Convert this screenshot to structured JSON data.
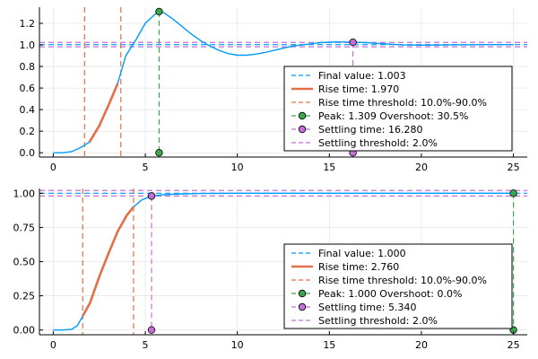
{
  "colors": {
    "response": "#009AFA",
    "rise": "#E26F46",
    "peak": "#3EA44E",
    "settling": "#C271D2",
    "axis": "#000000",
    "grid": "#E6E6E6"
  },
  "chart_data": [
    {
      "type": "line",
      "title": "",
      "xlabel": "",
      "ylabel": "",
      "xlim": [
        -0.75,
        25.75
      ],
      "ylim": [
        -0.04,
        1.35
      ],
      "xticks": [
        0,
        5,
        10,
        15,
        20,
        25
      ],
      "xtick_labels": [
        "0",
        "5",
        "10",
        "15",
        "20",
        "25"
      ],
      "yticks": [
        0.0,
        0.2,
        0.4,
        0.6,
        0.8,
        1.0,
        1.2
      ],
      "ytick_labels": [
        "0.0",
        "0.2",
        "0.4",
        "0.6",
        "0.8",
        "1.0",
        "1.2"
      ],
      "grid": true,
      "legend_position": "bottom-right",
      "response": {
        "x": [
          0,
          0.5,
          1.0,
          1.5,
          1.97,
          2.5,
          3.0,
          3.5,
          3.94,
          4.5,
          5.0,
          5.5,
          5.75,
          6.0,
          6.5,
          7.0,
          7.5,
          8.0,
          8.5,
          9.0,
          9.5,
          10.0,
          10.5,
          11.0,
          11.5,
          12.0,
          12.5,
          13.0,
          13.5,
          14.0,
          14.5,
          15.0,
          15.5,
          16.28,
          17.0,
          17.5,
          18.0,
          18.5,
          19.0,
          20.0,
          21.0,
          22.0,
          23.0,
          24.0,
          25.0
        ],
        "y": [
          0.0,
          0.0,
          0.01,
          0.05,
          0.1,
          0.25,
          0.44,
          0.64,
          0.9,
          1.05,
          1.2,
          1.28,
          1.309,
          1.3,
          1.24,
          1.17,
          1.1,
          1.04,
          0.99,
          0.95,
          0.92,
          0.905,
          0.905,
          0.915,
          0.93,
          0.95,
          0.97,
          0.99,
          1.0,
          1.01,
          1.02,
          1.025,
          1.028,
          1.025,
          1.02,
          1.015,
          1.01,
          1.005,
          1.0,
          0.998,
          0.999,
          1.001,
          1.002,
          1.003,
          1.003
        ]
      },
      "final_value": 1.003,
      "rise_time": 1.97,
      "rise_start": 1.7,
      "rise_end": 3.67,
      "peak_time": 5.75,
      "peak_value": 1.309,
      "overshoot_percent": 30.5,
      "settling_time": 16.28,
      "settling_value": 1.025,
      "settling_threshold_percent": 2.0,
      "legend": [
        "Final value: 1.003",
        "Rise time: 1.970",
        "Rise time threshold: 10.0%-90.0%",
        "Peak: 1.309 Overshoot: 30.5%",
        "Settling time: 16.280",
        "Settling threshold: 2.0%"
      ]
    },
    {
      "type": "line",
      "title": "",
      "xlabel": "",
      "ylabel": "",
      "xlim": [
        -0.75,
        25.75
      ],
      "ylim": [
        -0.035,
        1.035
      ],
      "xticks": [
        0,
        5,
        10,
        15,
        20,
        25
      ],
      "xtick_labels": [
        "0",
        "5",
        "10",
        "15",
        "20",
        "25"
      ],
      "yticks": [
        0.0,
        0.25,
        0.5,
        0.75,
        1.0
      ],
      "ytick_labels": [
        "0.00",
        "0.25",
        "0.50",
        "0.75",
        "1.00"
      ],
      "grid": true,
      "legend_position": "bottom-right",
      "response": {
        "x": [
          0,
          0.5,
          1.0,
          1.3,
          1.6,
          2.0,
          2.5,
          3.0,
          3.5,
          4.0,
          4.36,
          4.8,
          5.34,
          6.0,
          7.0,
          8.0,
          10.0,
          15.0,
          20.0,
          25.0
        ],
        "y": [
          0.0,
          0.0,
          0.005,
          0.03,
          0.1,
          0.2,
          0.39,
          0.56,
          0.72,
          0.84,
          0.9,
          0.95,
          0.98,
          0.99,
          0.995,
          0.998,
          1.0,
          1.0,
          1.0,
          1.0
        ]
      },
      "final_value": 1.0,
      "rise_time": 2.76,
      "rise_start": 1.6,
      "rise_end": 4.36,
      "peak_time": 25.0,
      "peak_value": 1.0,
      "overshoot_percent": 0.0,
      "settling_time": 5.34,
      "settling_value": 0.98,
      "settling_threshold_percent": 2.0,
      "legend": [
        "Final value: 1.000",
        "Rise time: 2.760",
        "Rise time threshold: 10.0%-90.0%",
        "Peak: 1.000 Overshoot: 0.0%",
        "Settling time: 5.340",
        "Settling threshold: 2.0%"
      ]
    }
  ]
}
